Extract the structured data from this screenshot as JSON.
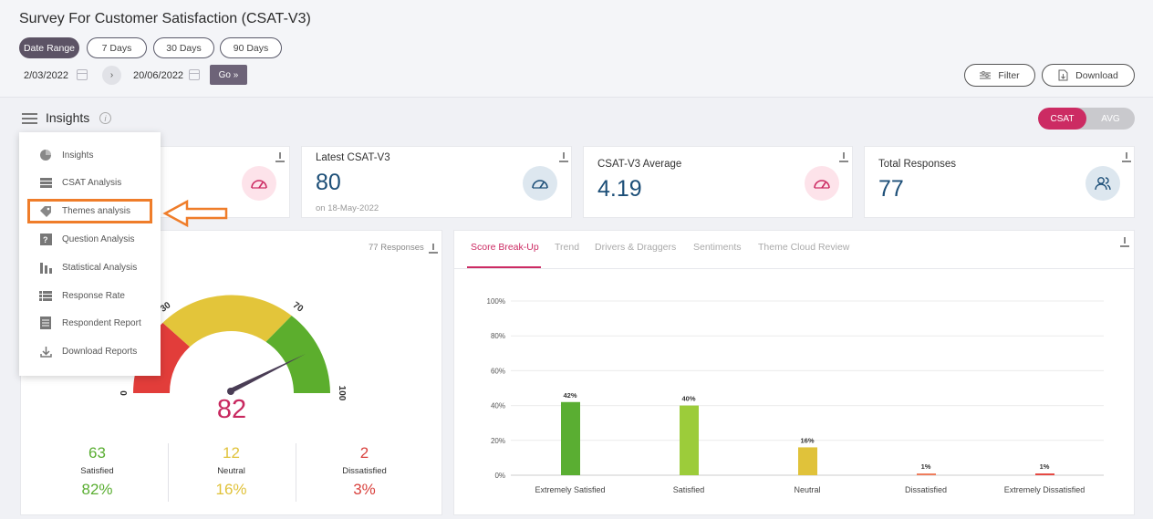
{
  "header": {
    "title": "Survey For Customer Satisfaction (CSAT-V3)",
    "ranges": [
      "Date Range",
      "7 Days",
      "30 Days",
      "90 Days"
    ],
    "start_date": "2/03/2022",
    "end_date": "20/06/2022",
    "go_label": "Go",
    "filter_label": "Filter",
    "download_label": "Download"
  },
  "insights": {
    "title": "Insights",
    "toggle": [
      "CSAT",
      "AVG"
    ]
  },
  "menu": [
    {
      "label": "Insights",
      "icon": "pie-chart-icon"
    },
    {
      "label": "CSAT Analysis",
      "icon": "list-icon"
    },
    {
      "label": "Themes analysis",
      "icon": "tags-icon"
    },
    {
      "label": "Question Analysis",
      "icon": "question-icon"
    },
    {
      "label": "Statistical Analysis",
      "icon": "bar-chart-icon"
    },
    {
      "label": "Response Rate",
      "icon": "list-icon"
    },
    {
      "label": "Respondent Report",
      "icon": "document-icon"
    },
    {
      "label": "Download Reports",
      "icon": "download-icon"
    }
  ],
  "kpis": [
    {
      "label": "Latest CSAT-V3",
      "value": "80",
      "sub": "on 18-May-2022"
    },
    {
      "label": "CSAT-V3 Average",
      "value": "4.19"
    },
    {
      "label": "Total Responses",
      "value": "77"
    }
  ],
  "gauge": {
    "responses": "77 Responses",
    "value": "82",
    "ticks": [
      "0",
      "30",
      "70",
      "100"
    ],
    "needle_value": 82
  },
  "summary": [
    {
      "count": "63",
      "label": "Satisfied",
      "pct": "82%",
      "color": "#5aae32"
    },
    {
      "count": "12",
      "label": "Neutral",
      "pct": "16%",
      "color": "#e0c23a"
    },
    {
      "count": "2",
      "label": "Dissatisfied",
      "pct": "3%",
      "color": "#d9423e"
    }
  ],
  "tabs": [
    "Score Break-Up",
    "Trend",
    "Drivers & Draggers",
    "Sentiments",
    "Theme Cloud Review"
  ],
  "chart_data": {
    "type": "bar",
    "categories": [
      "Extremely Satisfied",
      "Satisfied",
      "Neutral",
      "Dissatisfied",
      "Extremely Dissatisfied"
    ],
    "values": [
      42,
      40,
      16,
      1,
      1
    ],
    "labels": [
      "42%",
      "40%",
      "16%",
      "1%",
      "1%"
    ],
    "colors": [
      "#5aae32",
      "#9ccc3a",
      "#e0c23a",
      "#ef7a58",
      "#e5443e"
    ],
    "yticks": [
      "0%",
      "20%",
      "40%",
      "60%",
      "80%",
      "100%"
    ],
    "ylim": [
      0,
      100
    ]
  }
}
